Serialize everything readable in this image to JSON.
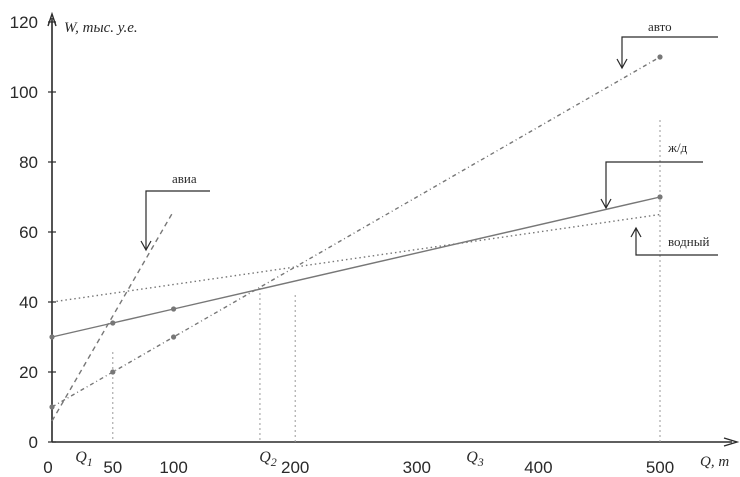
{
  "chart_data": {
    "type": "line",
    "x_axis_label": "Q, т",
    "y_axis_label": "W, тыс. у.е.",
    "x_ticks": [
      0,
      50,
      100,
      200,
      300,
      400,
      500
    ],
    "y_ticks": [
      0,
      20,
      40,
      60,
      80,
      100,
      120
    ],
    "xlim": [
      0,
      500
    ],
    "ylim": [
      0,
      120
    ],
    "grid": false,
    "colors": {
      "axis": "#2a2a2a",
      "series": "#777777",
      "guide": "#9a9a9a"
    },
    "series": [
      {
        "name": "авиа",
        "style": "dashed",
        "x": [
          0,
          100
        ],
        "y": [
          6,
          66
        ]
      },
      {
        "name": "авто",
        "style": "dashed-dotted",
        "x": [
          0,
          50,
          100,
          500
        ],
        "y": [
          10,
          20,
          30,
          110
        ],
        "markers": [
          0,
          50,
          100,
          500
        ]
      },
      {
        "name": "ж/д",
        "style": "solid",
        "x": [
          0,
          50,
          100,
          500
        ],
        "y": [
          30,
          34,
          38,
          70
        ],
        "markers": [
          0,
          50,
          100,
          500
        ]
      },
      {
        "name": "водный",
        "style": "dotted",
        "x": [
          0,
          500
        ],
        "y": [
          40,
          65
        ],
        "markers": []
      }
    ],
    "annotations": [
      {
        "label": "Q",
        "subscript": "1",
        "x": 50
      },
      {
        "label": "Q",
        "subscript": "2",
        "x": 180
      },
      {
        "label": "Q",
        "subscript": "3",
        "x": 330
      }
    ],
    "guide_lines_x": [
      50,
      171,
      200,
      500
    ]
  }
}
